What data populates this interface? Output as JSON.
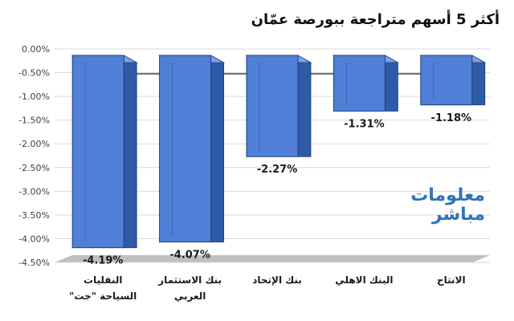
{
  "chart_data": {
    "type": "bar",
    "title": "أكثر 5 أسهم متراجعة ببورصة عمّان",
    "categories": [
      [
        "النقليات",
        "السياحة \"جت\""
      ],
      [
        "بنك الاستثمار",
        "العربي"
      ],
      [
        "بنك الإتحاد"
      ],
      [
        "البنك الاهلي"
      ],
      [
        "الانتاج"
      ]
    ],
    "values": [
      -4.19,
      -4.07,
      -2.27,
      -1.31,
      -1.18
    ],
    "data_labels": [
      "-4.19%",
      "-4.07%",
      "-2.27%",
      "-1.31%",
      "-1.18%"
    ],
    "ylim": [
      -4.5,
      0
    ],
    "yticks": [
      "0.00%",
      "-0.50%",
      "-1.00%",
      "-1.50%",
      "-2.00%",
      "-2.50%",
      "-3.00%",
      "-3.50%",
      "-4.00%",
      "-4.50%"
    ],
    "grid": true,
    "bar_color": "#4f7fd6",
    "xlabel": "",
    "ylabel": ""
  },
  "watermark": {
    "line1": "معلومات",
    "line2": "مباشر"
  }
}
